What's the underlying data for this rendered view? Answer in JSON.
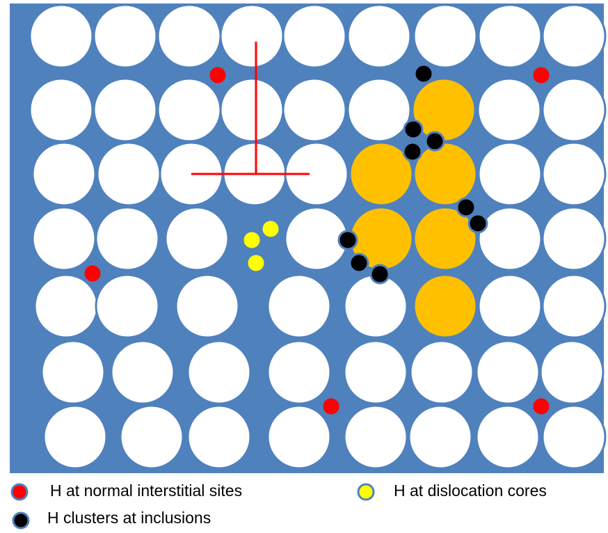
{
  "legend": [
    {
      "label": "H at normal interstitial sites"
    },
    {
      "label": "H at dislocation cores"
    },
    {
      "label": "H clusters at inclusions"
    }
  ]
}
